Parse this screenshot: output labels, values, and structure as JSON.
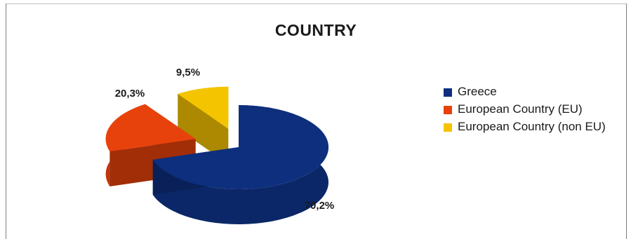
{
  "chart_data": {
    "type": "pie",
    "title": "COUNTRY",
    "categories": [
      "Greece",
      "European Country (EU)",
      "European Country (non EU)"
    ],
    "values": [
      70.2,
      20.3,
      9.5
    ],
    "value_labels": [
      "70,2%",
      "20,3%",
      "9,5%"
    ],
    "colors": [
      "#0d2f7d",
      "#e8420c",
      "#f5c400"
    ],
    "legend_placement": "right",
    "three_d": true,
    "exploded": true
  }
}
